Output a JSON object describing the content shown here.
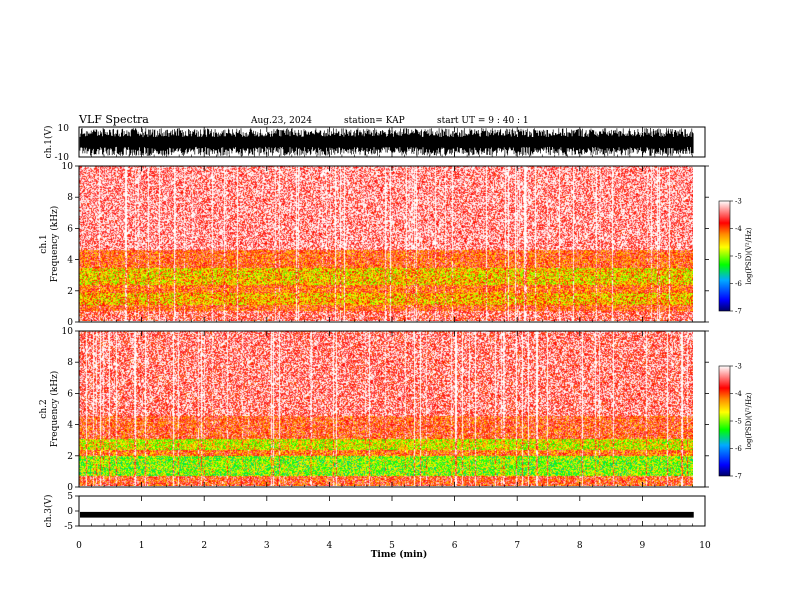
{
  "header": {
    "title": "VLF Spectra",
    "date": "Aug.23, 2024",
    "station": "station= KAP",
    "start": "start  UT  =   9  : 40 : 1"
  },
  "colors": {
    "stops": [
      "#000066",
      "#0000ff",
      "#00aaff",
      "#00ff00",
      "#ffff00",
      "#ff8800",
      "#ff0000",
      "#ffffff"
    ],
    "trace": "#000000"
  },
  "chart_data": [
    {
      "type": "line",
      "panel": "ch1-waveform",
      "ylabel": "ch.1(V)",
      "ylim": [
        -10,
        10
      ],
      "yticks": [
        "10",
        "-10"
      ],
      "xlim": [
        0,
        10
      ],
      "note_values": "black waveform trace filling the band, amplitude clipped near ±10 V"
    },
    {
      "type": "heatmap",
      "panel": "ch1-spectrogram",
      "ylabel_top": "ch.1",
      "ylabel": "Frequency (kHz)",
      "ylim": [
        0,
        10
      ],
      "yticks": [
        "0",
        "2",
        "4",
        "6",
        "8",
        "10"
      ],
      "xlim": [
        0,
        9.8
      ],
      "colorbar": {
        "label": "log(PSD)(V²/Hz)",
        "range": [
          -7,
          -3
        ],
        "ticks": [
          "-3",
          "-4",
          "-5",
          "-6",
          "-7"
        ]
      },
      "bands": [
        {
          "from": 0.0,
          "to": 0.6,
          "log_psd": -3.5
        },
        {
          "from": 0.6,
          "to": 1.0,
          "log_psd": -3.9
        },
        {
          "from": 1.0,
          "to": 1.8,
          "log_psd": -4.4
        },
        {
          "from": 1.8,
          "to": 2.3,
          "log_psd": -4.0
        },
        {
          "from": 2.3,
          "to": 3.4,
          "log_psd": -4.5
        },
        {
          "from": 3.4,
          "to": 4.6,
          "log_psd": -3.9
        },
        {
          "from": 4.6,
          "to": 10.0,
          "log_psd": -3.3
        }
      ]
    },
    {
      "type": "heatmap",
      "panel": "ch2-spectrogram",
      "ylabel_top": "ch.2",
      "ylabel": "Frequency (kHz)",
      "ylim": [
        0,
        10
      ],
      "yticks": [
        "0",
        "2",
        "4",
        "6",
        "8",
        "10"
      ],
      "xlim": [
        0,
        9.8
      ],
      "colorbar": {
        "label": "log(PSD)(V²/Hz)",
        "range": [
          -7,
          -3
        ],
        "ticks": [
          "-3",
          "-4",
          "-5",
          "-6",
          "-7"
        ]
      },
      "bands": [
        {
          "from": 0.0,
          "to": 0.6,
          "log_psd": -3.8
        },
        {
          "from": 0.6,
          "to": 1.9,
          "log_psd": -5.0
        },
        {
          "from": 1.9,
          "to": 2.3,
          "log_psd": -4.0
        },
        {
          "from": 2.3,
          "to": 3.0,
          "log_psd": -4.7
        },
        {
          "from": 3.0,
          "to": 4.5,
          "log_psd": -3.8
        },
        {
          "from": 4.5,
          "to": 10.0,
          "log_psd": -3.4
        }
      ]
    },
    {
      "type": "line",
      "panel": "ch3-waveform",
      "ylabel": "ch.3(V)",
      "ylim": [
        -5,
        5
      ],
      "yticks": [
        "5",
        "0",
        "-5"
      ],
      "xlim": [
        0,
        10
      ],
      "band_v": [
        -2.2,
        -0.3
      ]
    }
  ],
  "xaxis": {
    "label": "Time (min)",
    "range": [
      0,
      10
    ],
    "ticks": [
      "0",
      "1",
      "2",
      "3",
      "4",
      "5",
      "6",
      "7",
      "8",
      "9",
      "10"
    ]
  }
}
